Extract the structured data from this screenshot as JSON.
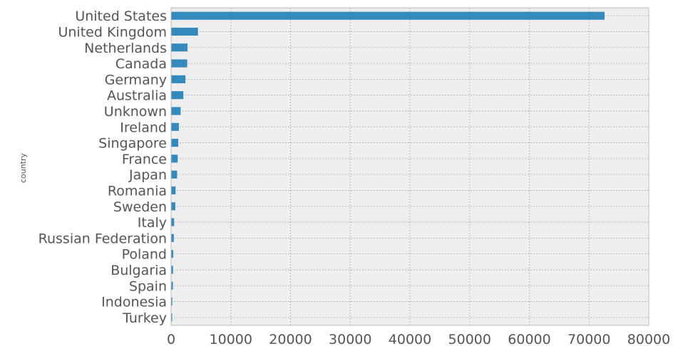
{
  "chart_data": {
    "type": "bar",
    "orientation": "horizontal",
    "categories": [
      "United States",
      "United Kingdom",
      "Netherlands",
      "Canada",
      "Germany",
      "Australia",
      "Unknown",
      "Ireland",
      "Singapore",
      "France",
      "Japan",
      "Romania",
      "Sweden",
      "Italy",
      "Russian Federation",
      "Poland",
      "Bulgaria",
      "Spain",
      "Indonesia",
      "Turkey"
    ],
    "values": [
      72600,
      4500,
      2750,
      2700,
      2400,
      2050,
      1600,
      1300,
      1200,
      1100,
      1000,
      750,
      700,
      500,
      450,
      350,
      330,
      300,
      200,
      180
    ],
    "title": "",
    "xlabel": "",
    "ylabel": "country",
    "xlim": [
      0,
      80000
    ],
    "xticks": [
      "0",
      "10000",
      "20000",
      "30000",
      "40000",
      "50000",
      "60000",
      "70000",
      "80000"
    ],
    "grid": true,
    "colors": {
      "bar": "#348abd",
      "background": "#eeeeee",
      "grid": "#b0b0b0",
      "text": "#555555"
    }
  }
}
